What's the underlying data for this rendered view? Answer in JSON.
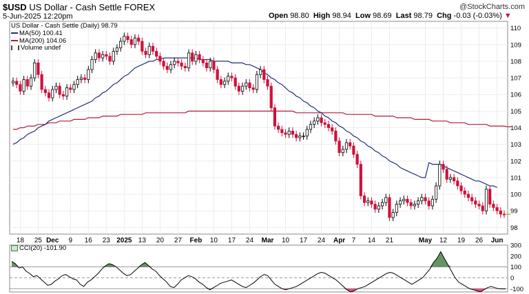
{
  "header": {
    "symbol": "$USD",
    "name": "US Dollar - Cash Settle",
    "exchange": "FOREX",
    "datetime": "5-Jun-2025 12:20pm",
    "open_label": "Open",
    "open": "98.80",
    "high_label": "High",
    "high": "98.94",
    "low_label": "Low",
    "low": "98.69",
    "last_label": "Last",
    "last": "98.79",
    "chg_label": "Chg",
    "chg": "-0.03 (-0.03%)",
    "chg_icon": "down-triangle-icon",
    "brand": "@StockCharts.com"
  },
  "colors": {
    "up": "#000000",
    "down": "#d0103a",
    "ma50": "#1f2f7a",
    "ma200": "#b01a3a",
    "cci_fill_pos": "#3e7a3e",
    "cci_fill_neg": "#d0103a"
  },
  "chart_data": [
    {
      "type": "candlestick",
      "title": "US Dollar - Cash Settle (Daily) 98.79",
      "legend": [
        {
          "name": "US Dollar - Cash Settle (Daily) 98.79"
        },
        {
          "name": "MA(50) 100.41"
        },
        {
          "name": "MA(200) 104.06"
        },
        {
          "name": "Volume undef"
        }
      ],
      "ylim": [
        97.6,
        110.4
      ],
      "yticks": [
        98,
        99,
        100,
        101,
        102,
        103,
        104,
        105,
        106,
        107,
        108,
        109,
        110
      ],
      "xtick_labels": [
        {
          "i": 2,
          "t": "18"
        },
        {
          "i": 7,
          "t": "25"
        },
        {
          "i": 11,
          "t": "Dec"
        },
        {
          "i": 16,
          "t": "9"
        },
        {
          "i": 21,
          "t": "16"
        },
        {
          "i": 26,
          "t": "23"
        },
        {
          "i": 31,
          "t": "2025"
        },
        {
          "i": 36,
          "t": "13"
        },
        {
          "i": 41,
          "t": "20"
        },
        {
          "i": 46,
          "t": "27"
        },
        {
          "i": 51,
          "t": "Feb"
        },
        {
          "i": 56,
          "t": "10"
        },
        {
          "i": 61,
          "t": "17"
        },
        {
          "i": 66,
          "t": "24"
        },
        {
          "i": 71,
          "t": "Mar"
        },
        {
          "i": 76,
          "t": "10"
        },
        {
          "i": 81,
          "t": "17"
        },
        {
          "i": 86,
          "t": "24"
        },
        {
          "i": 91,
          "t": "Apr"
        },
        {
          "i": 95,
          "t": "7"
        },
        {
          "i": 100,
          "t": "14"
        },
        {
          "i": 105,
          "t": "21"
        },
        {
          "i": 115,
          "t": "May"
        },
        {
          "i": 120,
          "t": "12"
        },
        {
          "i": 125,
          "t": "19"
        },
        {
          "i": 130,
          "t": "26"
        },
        {
          "i": 135,
          "t": "Jun"
        }
      ],
      "close": [
        106.8,
        106.6,
        106.2,
        106.9,
        106.5,
        107.0,
        107.9,
        107.2,
        106.3,
        106.1,
        105.8,
        106.3,
        106.5,
        106.0,
        105.9,
        106.4,
        106.3,
        106.6,
        106.9,
        107.0,
        106.9,
        107.5,
        108.1,
        108.5,
        108.2,
        108.4,
        108.3,
        108.0,
        108.6,
        108.8,
        109.2,
        109.5,
        109.3,
        109.0,
        109.4,
        109.2,
        108.6,
        108.4,
        108.9,
        108.6,
        108.3,
        108.0,
        107.7,
        107.5,
        107.8,
        108.0,
        107.9,
        107.7,
        107.6,
        108.5,
        108.0,
        108.4,
        108.1,
        107.9,
        107.6,
        108.0,
        107.5,
        106.9,
        106.6,
        106.8,
        107.1,
        107.0,
        106.5,
        106.2,
        106.5,
        106.7,
        106.4,
        106.3,
        107.2,
        107.5,
        106.9,
        106.5,
        105.2,
        104.1,
        103.9,
        103.7,
        103.6,
        103.8,
        103.6,
        103.4,
        103.5,
        103.5,
        103.9,
        104.2,
        104.4,
        104.6,
        104.3,
        104.2,
        104.0,
        103.8,
        103.2,
        102.5,
        102.7,
        103.1,
        102.9,
        102.4,
        101.8,
        99.9,
        99.5,
        99.6,
        99.4,
        99.1,
        99.3,
        99.5,
        99.8,
        98.6,
        98.9,
        99.4,
        99.6,
        99.7,
        99.5,
        99.3,
        99.4,
        99.6,
        99.8,
        99.6,
        99.3,
        99.7,
        100.5,
        101.8,
        101.5,
        100.9,
        101.0,
        100.8,
        100.5,
        100.2,
        100.0,
        99.8,
        99.6,
        99.4,
        99.3,
        99.0,
        100.3,
        99.4,
        99.2,
        99.0,
        98.8,
        98.79
      ],
      "ma50": [
        103.0,
        103.1,
        103.3,
        103.4,
        103.6,
        103.7,
        103.8,
        104.0,
        104.1,
        104.2,
        104.4,
        104.5,
        104.6,
        104.7,
        104.8,
        104.9,
        105.0,
        105.1,
        105.2,
        105.3,
        105.4,
        105.5,
        105.6,
        105.8,
        105.9,
        106.1,
        106.2,
        106.4,
        106.6,
        106.7,
        106.9,
        107.1,
        107.2,
        107.4,
        107.6,
        107.7,
        107.8,
        107.9,
        108.0,
        108.0,
        108.1,
        108.1,
        108.2,
        108.2,
        108.2,
        108.2,
        108.2,
        108.2,
        108.2,
        108.2,
        108.2,
        108.2,
        108.1,
        108.1,
        108.1,
        108.1,
        108.0,
        108.0,
        108.0,
        108.0,
        108.0,
        107.9,
        107.9,
        107.9,
        107.9,
        107.8,
        107.8,
        107.7,
        107.6,
        107.5,
        107.3,
        107.2,
        107.0,
        106.9,
        106.7,
        106.6,
        106.4,
        106.2,
        106.1,
        105.9,
        105.8,
        105.6,
        105.5,
        105.3,
        105.2,
        105.0,
        104.9,
        104.7,
        104.6,
        104.4,
        104.3,
        104.1,
        104.0,
        103.8,
        103.7,
        103.5,
        103.4,
        103.2,
        103.1,
        102.9,
        102.8,
        102.6,
        102.5,
        102.3,
        102.2,
        102.0,
        101.9,
        101.8,
        101.6,
        101.5,
        101.4,
        101.3,
        101.2,
        101.1,
        101.0,
        101.0,
        101.9,
        101.8,
        101.8,
        101.8,
        101.7,
        101.6,
        101.5,
        101.4,
        101.3,
        101.2,
        101.1,
        101.0,
        100.9,
        100.8,
        100.8,
        100.7,
        100.6,
        100.5,
        100.5,
        100.41
      ],
      "ma200": [
        103.9,
        103.9,
        104.0,
        104.0,
        104.1,
        104.1,
        104.1,
        104.2,
        104.2,
        104.2,
        104.3,
        104.3,
        104.3,
        104.4,
        104.4,
        104.4,
        104.4,
        104.5,
        104.5,
        104.5,
        104.5,
        104.6,
        104.6,
        104.6,
        104.6,
        104.7,
        104.7,
        104.7,
        104.7,
        104.7,
        104.8,
        104.8,
        104.8,
        104.8,
        104.8,
        104.8,
        104.8,
        104.9,
        104.9,
        104.9,
        104.9,
        104.9,
        104.9,
        104.9,
        104.9,
        104.9,
        104.9,
        104.9,
        104.9,
        105.0,
        105.0,
        105.0,
        105.0,
        105.0,
        105.0,
        105.0,
        105.0,
        105.0,
        105.0,
        105.0,
        105.0,
        105.0,
        105.0,
        105.0,
        105.0,
        105.0,
        105.0,
        105.0,
        105.0,
        105.0,
        105.0,
        105.0,
        105.0,
        105.0,
        105.0,
        105.0,
        105.0,
        105.0,
        105.0,
        104.9,
        104.9,
        104.9,
        104.9,
        104.9,
        104.9,
        104.9,
        104.9,
        104.9,
        104.9,
        104.9,
        104.9,
        104.9,
        104.9,
        104.8,
        104.8,
        104.8,
        104.8,
        104.8,
        104.8,
        104.8,
        104.8,
        104.7,
        104.7,
        104.7,
        104.7,
        104.7,
        104.7,
        104.6,
        104.6,
        104.6,
        104.6,
        104.6,
        104.5,
        104.5,
        104.5,
        104.5,
        104.5,
        104.4,
        104.4,
        104.4,
        104.4,
        104.4,
        104.3,
        104.3,
        104.3,
        104.3,
        104.3,
        104.2,
        104.2,
        104.2,
        104.2,
        104.2,
        104.2,
        104.1,
        104.1,
        104.1,
        104.1,
        104.1,
        104.06,
        104.06
      ]
    },
    {
      "type": "line",
      "title": "CCI(20) -101.90",
      "legend": [
        {
          "name": "CCI(20) -101.90"
        }
      ],
      "ylim": [
        -130,
        300
      ],
      "yticks": [
        300,
        200,
        100,
        0,
        -100
      ],
      "reference_lines": [
        100,
        0,
        -100
      ],
      "values": [
        150,
        130,
        90,
        100,
        60,
        40,
        10,
        20,
        -10,
        -40,
        -70,
        -60,
        -30,
        -10,
        20,
        30,
        10,
        -10,
        -20,
        -60,
        -80,
        -40,
        -20,
        10,
        40,
        80,
        110,
        130,
        120,
        100,
        70,
        40,
        20,
        30,
        60,
        90,
        120,
        140,
        110,
        80,
        60,
        20,
        -10,
        -40,
        -80,
        -90,
        -60,
        -20,
        0,
        20,
        10,
        -10,
        -40,
        -60,
        -90,
        -110,
        -90,
        -70,
        -50,
        -40,
        -30,
        -20,
        -40,
        -60,
        -80,
        -90,
        -70,
        -50,
        -20,
        10,
        30,
        20,
        -20,
        -60,
        -80,
        -100,
        -110,
        -100,
        -90,
        -80,
        -60,
        -40,
        -20,
        0,
        20,
        40,
        50,
        40,
        20,
        0,
        -20,
        -50,
        -80,
        -110,
        -130,
        -120,
        -100,
        -90,
        -80,
        -60,
        -40,
        -20,
        0,
        20,
        40,
        50,
        40,
        20,
        0,
        -20,
        -40,
        -60,
        -40,
        -20,
        0,
        40,
        80,
        140,
        180,
        240,
        180,
        120,
        60,
        0,
        -40,
        -60,
        -80,
        -100,
        -110,
        -120,
        -130,
        -110,
        -90,
        -80,
        -90,
        -100,
        -102,
        -101.9
      ]
    }
  ]
}
